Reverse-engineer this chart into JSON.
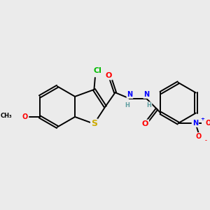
{
  "background_color": "#ebebeb",
  "atom_colors": {
    "C": "#000000",
    "H": "#5f9ea0",
    "O": "#ff0000",
    "N": "#0000ff",
    "S": "#ccaa00",
    "Cl": "#00bb00",
    "plus": "#0000ff",
    "minus": "#ff0000"
  },
  "bond_color": "#000000",
  "bond_width": 1.4,
  "font_size": 8
}
